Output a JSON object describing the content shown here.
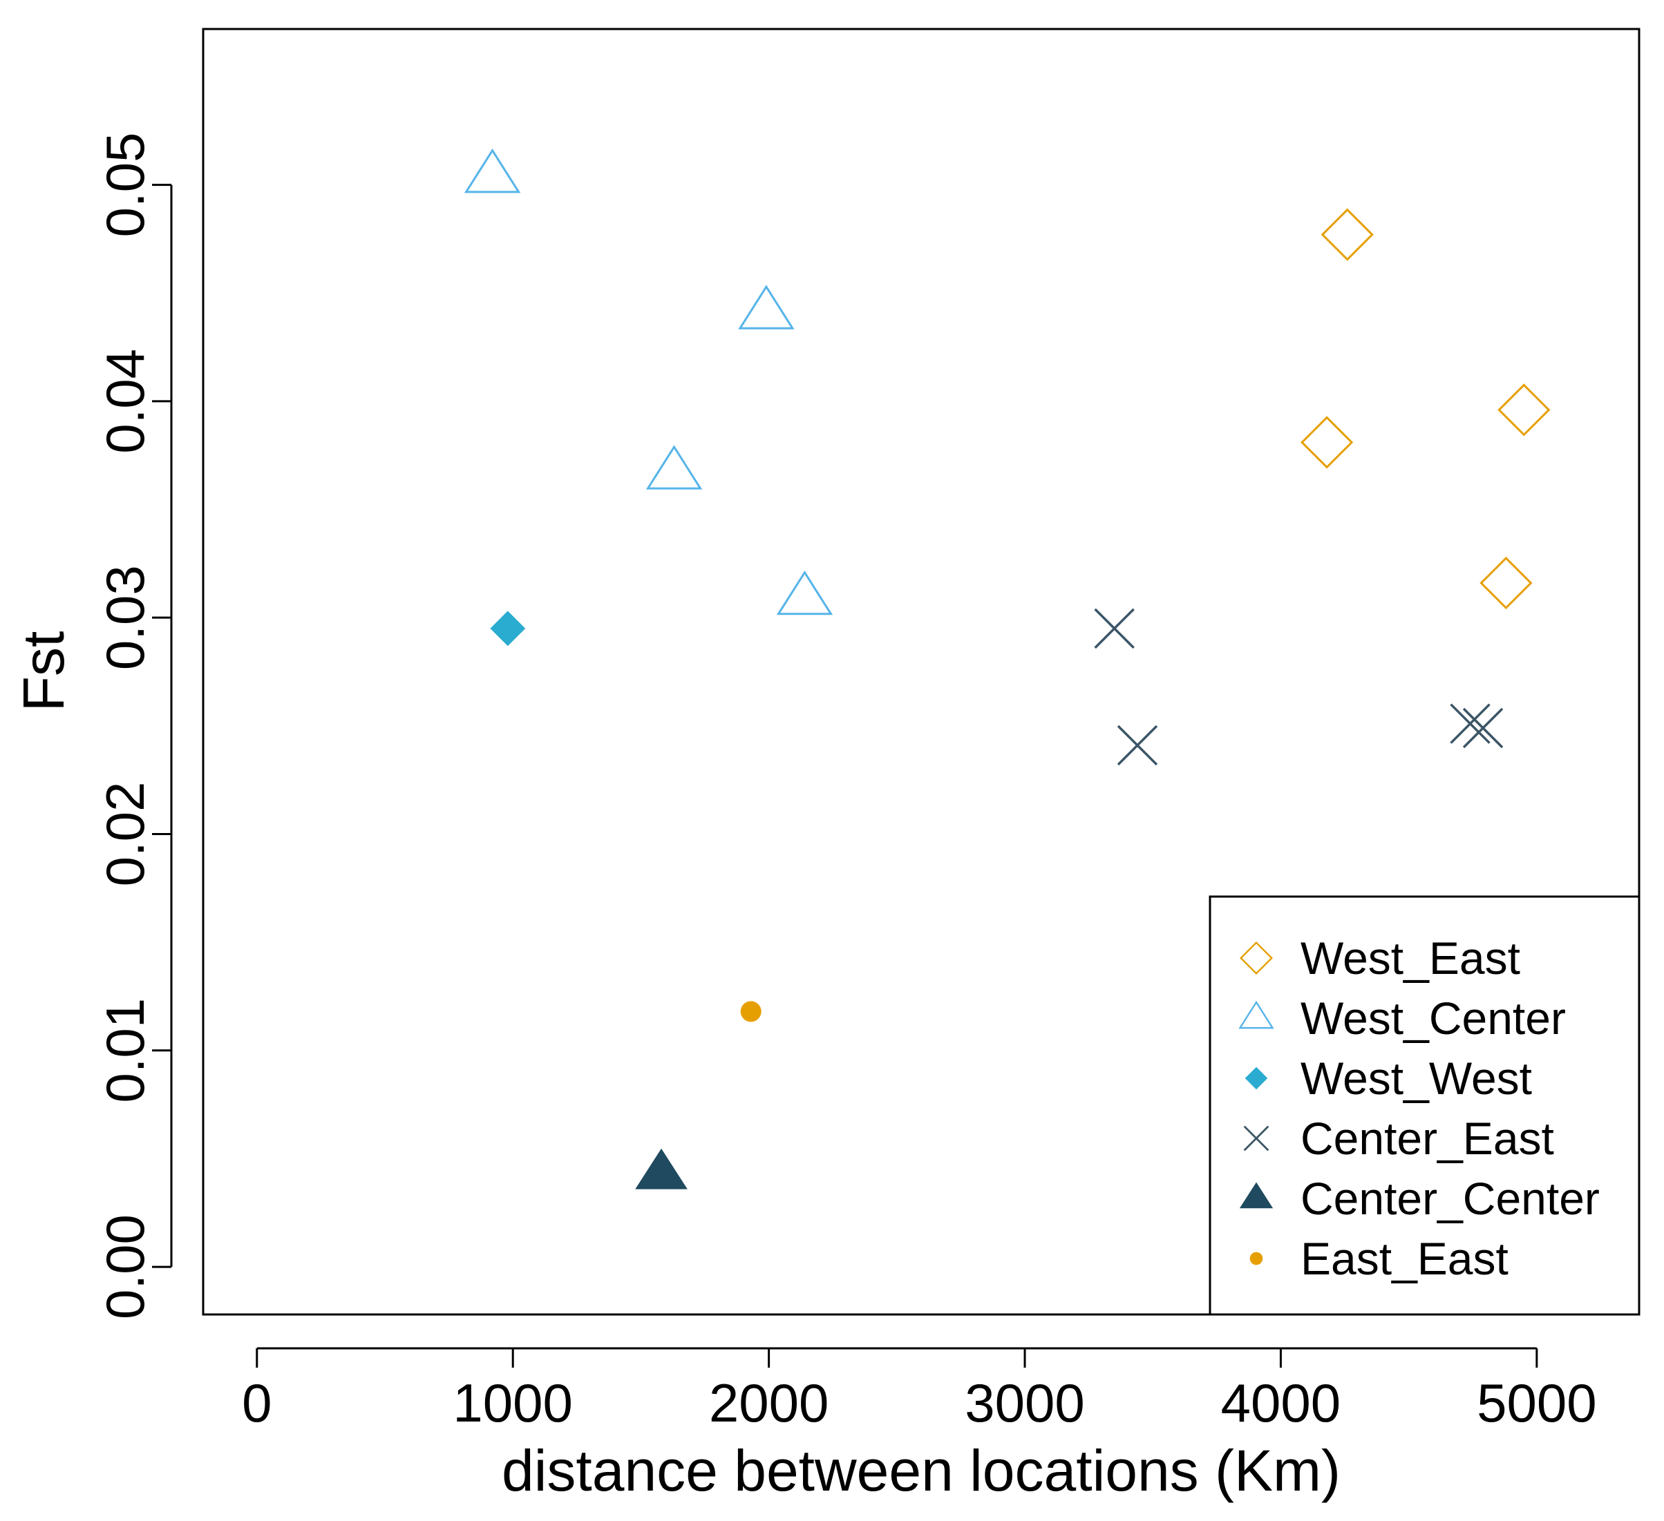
{
  "chart_data": {
    "type": "scatter",
    "title": "",
    "xlabel": "distance between locations (Km)",
    "ylabel": "Fst",
    "xlim": [
      -210,
      5400
    ],
    "ylim": [
      -0.0022,
      0.0572
    ],
    "x_ticks": [
      0,
      1000,
      2000,
      3000,
      4000,
      5000
    ],
    "x_tick_labels": [
      "0",
      "1000",
      "2000",
      "3000",
      "4000",
      "5000"
    ],
    "y_ticks": [
      0.0,
      0.01,
      0.02,
      0.03,
      0.04,
      0.05
    ],
    "y_tick_labels": [
      "0.00",
      "0.01",
      "0.02",
      "0.03",
      "0.04",
      "0.05"
    ],
    "grid": false,
    "legend_position": "bottom-right",
    "series": [
      {
        "name": "West_East",
        "marker": "diamond-open",
        "color": "#E69F00",
        "points": [
          {
            "x": 4260,
            "y": 0.0477
          },
          {
            "x": 4180,
            "y": 0.0381
          },
          {
            "x": 4950,
            "y": 0.0396
          },
          {
            "x": 4880,
            "y": 0.0316
          }
        ]
      },
      {
        "name": "West_Center",
        "marker": "triangle-open",
        "color": "#56B4E9",
        "points": [
          {
            "x": 920,
            "y": 0.0504
          },
          {
            "x": 1990,
            "y": 0.0441
          },
          {
            "x": 1630,
            "y": 0.0367
          },
          {
            "x": 2140,
            "y": 0.0309
          }
        ]
      },
      {
        "name": "West_West",
        "marker": "diamond-filled",
        "color": "#2AABD0",
        "points": [
          {
            "x": 980,
            "y": 0.0295
          }
        ]
      },
      {
        "name": "Center_East",
        "marker": "cross",
        "color": "#3B5566",
        "points": [
          {
            "x": 3350,
            "y": 0.0295
          },
          {
            "x": 3440,
            "y": 0.0241
          },
          {
            "x": 4740,
            "y": 0.0251
          },
          {
            "x": 4790,
            "y": 0.0249
          }
        ]
      },
      {
        "name": "Center_Center",
        "marker": "triangle-filled",
        "color": "#1F4A5F",
        "points": [
          {
            "x": 1580,
            "y": 0.0043
          }
        ]
      },
      {
        "name": "East_East",
        "marker": "circle-filled",
        "color": "#E69F00",
        "points": [
          {
            "x": 1930,
            "y": 0.0118
          }
        ]
      }
    ]
  }
}
